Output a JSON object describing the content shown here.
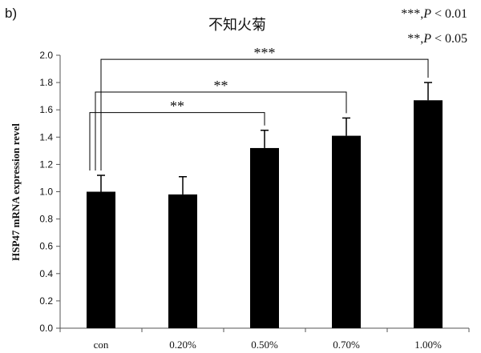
{
  "panel_label": "b)",
  "chart_data": {
    "type": "bar",
    "title": "不知火菊",
    "xlabel": "",
    "ylabel": "HSP47 mRNA expression revel",
    "categories": [
      "con",
      "0.20%",
      "0.50%",
      "0.70%",
      "1.00%"
    ],
    "values": [
      1.0,
      0.98,
      1.32,
      1.41,
      1.67
    ],
    "errors": [
      0.12,
      0.13,
      0.13,
      0.13,
      0.13
    ],
    "ylim": [
      0,
      2.0
    ],
    "ytick_step": 0.2,
    "ytick_labels": [
      "0.0",
      "0.2",
      "0.4",
      "0.6",
      "0.8",
      "1.0",
      "1.2",
      "1.4",
      "1.6",
      "1.8",
      "2.0"
    ],
    "bar_color": "#000000",
    "grid": false,
    "legend_notes": [
      {
        "stars": "***",
        "p": "P",
        "relation": "< 0.01"
      },
      {
        "stars": "**",
        "p": "P",
        "relation": "< 0.05"
      }
    ],
    "significance": [
      {
        "from": 0,
        "to": 2,
        "label": "**",
        "level": 1.58
      },
      {
        "from": 0,
        "to": 3,
        "label": "**",
        "level": 1.73
      },
      {
        "from": 0,
        "to": 4,
        "label": "***",
        "level": 1.97
      }
    ]
  }
}
